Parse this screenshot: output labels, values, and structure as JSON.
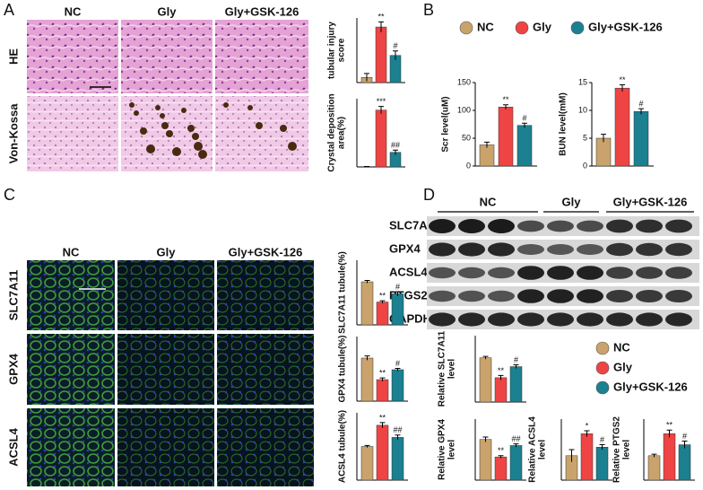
{
  "panel_labels": [
    "A",
    "B",
    "C",
    "D"
  ],
  "panel_a": {
    "columns": [
      "NC",
      "Gly",
      "Gly+GSK-126"
    ],
    "rows": [
      "HE",
      "Von-Kossa"
    ]
  },
  "panel_b": {
    "legend": [
      {
        "name": "NC",
        "color": "#c9a36b"
      },
      {
        "name": "Gly",
        "color": "#ef4444"
      },
      {
        "name": "Gly+GSK-126",
        "color": "#1b8090"
      }
    ]
  },
  "panel_c": {
    "columns": [
      "NC",
      "Gly",
      "Gly+GSK-126"
    ],
    "rows": [
      "SLC7A11",
      "GPX4",
      "ACSL4"
    ]
  },
  "panel_d": {
    "columns": [
      "NC",
      "Gly",
      "Gly+GSK-126"
    ],
    "rows": [
      "SLC7A11",
      "GPX4",
      "ACSL4",
      "PTGS2",
      "GAPDH"
    ],
    "legend": [
      {
        "name": "NC",
        "color": "#c9a36b"
      },
      {
        "name": "Gly",
        "color": "#ef4444"
      },
      {
        "name": "Gly+GSK-126",
        "color": "#1b8090"
      }
    ]
  },
  "chart_data": [
    {
      "type": "bar",
      "ylabel": [
        "tubular injury",
        "score"
      ],
      "values": [
        0.4,
        4.3,
        2.1
      ],
      "errors": [
        0.3,
        0.4,
        0.35
      ],
      "significance": [
        null,
        "**",
        "#"
      ],
      "colors": [
        "#c9a36b",
        "#ef4444",
        "#1b8090"
      ],
      "ylim": [
        0,
        5
      ]
    },
    {
      "type": "bar",
      "ylabel": [
        "Crystal deposition",
        "area(%)"
      ],
      "values": [
        0.0,
        12.5,
        3.2
      ],
      "errors": [
        0.1,
        0.8,
        0.5
      ],
      "significance": [
        null,
        "***",
        "##"
      ],
      "colors": [
        "#c9a36b",
        "#ef4444",
        "#1b8090"
      ],
      "ylim": [
        0,
        15
      ]
    },
    {
      "type": "bar",
      "ylabel": [
        "Scr level(uM)"
      ],
      "values": [
        38,
        106,
        73
      ],
      "errors": [
        5,
        4,
        4
      ],
      "significance": [
        null,
        "**",
        "#"
      ],
      "colors": [
        "#c9a36b",
        "#ef4444",
        "#1b8090"
      ],
      "ylim": [
        0,
        150
      ],
      "yticks": [
        0,
        50,
        100,
        150
      ]
    },
    {
      "type": "bar",
      "ylabel": [
        "BUN level(mM)"
      ],
      "values": [
        5,
        14,
        9.8
      ],
      "errors": [
        0.7,
        0.6,
        0.5
      ],
      "significance": [
        null,
        "**",
        "#"
      ],
      "colors": [
        "#c9a36b",
        "#ef4444",
        "#1b8090"
      ],
      "ylim": [
        0,
        15
      ],
      "yticks": [
        0,
        5,
        10,
        15
      ]
    },
    {
      "type": "bar",
      "ylabel": [
        "SLC7A11 tubule(%)"
      ],
      "values": [
        1.0,
        0.53,
        0.72
      ],
      "errors": [
        0.03,
        0.03,
        0.05
      ],
      "significance": [
        null,
        "**",
        "#"
      ],
      "colors": [
        "#c9a36b",
        "#ef4444",
        "#1b8090"
      ],
      "ylim": [
        0,
        1.5
      ]
    },
    {
      "type": "bar",
      "ylabel": [
        "GPX4 tubule(%)"
      ],
      "values": [
        1.0,
        0.5,
        0.73
      ],
      "errors": [
        0.05,
        0.04,
        0.03
      ],
      "significance": [
        null,
        "**",
        "#"
      ],
      "colors": [
        "#c9a36b",
        "#ef4444",
        "#1b8090"
      ],
      "ylim": [
        0,
        1.5
      ]
    },
    {
      "type": "bar",
      "ylabel": [
        "ACSL4 tubule(%)"
      ],
      "values": [
        1.0,
        1.63,
        1.27
      ],
      "errors": [
        0.03,
        0.08,
        0.07
      ],
      "significance": [
        null,
        "**",
        "##"
      ],
      "colors": [
        "#c9a36b",
        "#ef4444",
        "#1b8090"
      ],
      "ylim": [
        0,
        2
      ]
    },
    {
      "type": "bar",
      "ylabel": [
        "Relative SLC7A11",
        "level"
      ],
      "values": [
        1.0,
        0.55,
        0.8
      ],
      "errors": [
        0.03,
        0.05,
        0.04
      ],
      "significance": [
        null,
        "**",
        "#"
      ],
      "colors": [
        "#c9a36b",
        "#ef4444",
        "#1b8090"
      ],
      "ylim": [
        0,
        1.5
      ]
    },
    {
      "type": "bar",
      "ylabel": [
        "Relative GPX4",
        "level"
      ],
      "values": [
        1.0,
        0.57,
        0.85
      ],
      "errors": [
        0.06,
        0.03,
        0.04
      ],
      "significance": [
        null,
        "**",
        "##"
      ],
      "colors": [
        "#c9a36b",
        "#ef4444",
        "#1b8090"
      ],
      "ylim": [
        0,
        1.5
      ]
    },
    {
      "type": "bar",
      "ylabel": [
        "Relative ACSL4",
        "level"
      ],
      "values": [
        1.0,
        1.9,
        1.35
      ],
      "errors": [
        0.25,
        0.12,
        0.1
      ],
      "significance": [
        null,
        "*",
        "#"
      ],
      "colors": [
        "#c9a36b",
        "#ef4444",
        "#1b8090"
      ],
      "ylim": [
        0,
        2.5
      ]
    },
    {
      "type": "bar",
      "ylabel": [
        "Relative PTGS2",
        "level"
      ],
      "values": [
        1.0,
        1.9,
        1.45
      ],
      "errors": [
        0.06,
        0.15,
        0.15
      ],
      "significance": [
        null,
        "**",
        "#"
      ],
      "colors": [
        "#c9a36b",
        "#ef4444",
        "#1b8090"
      ],
      "ylim": [
        0,
        2.5
      ]
    }
  ]
}
